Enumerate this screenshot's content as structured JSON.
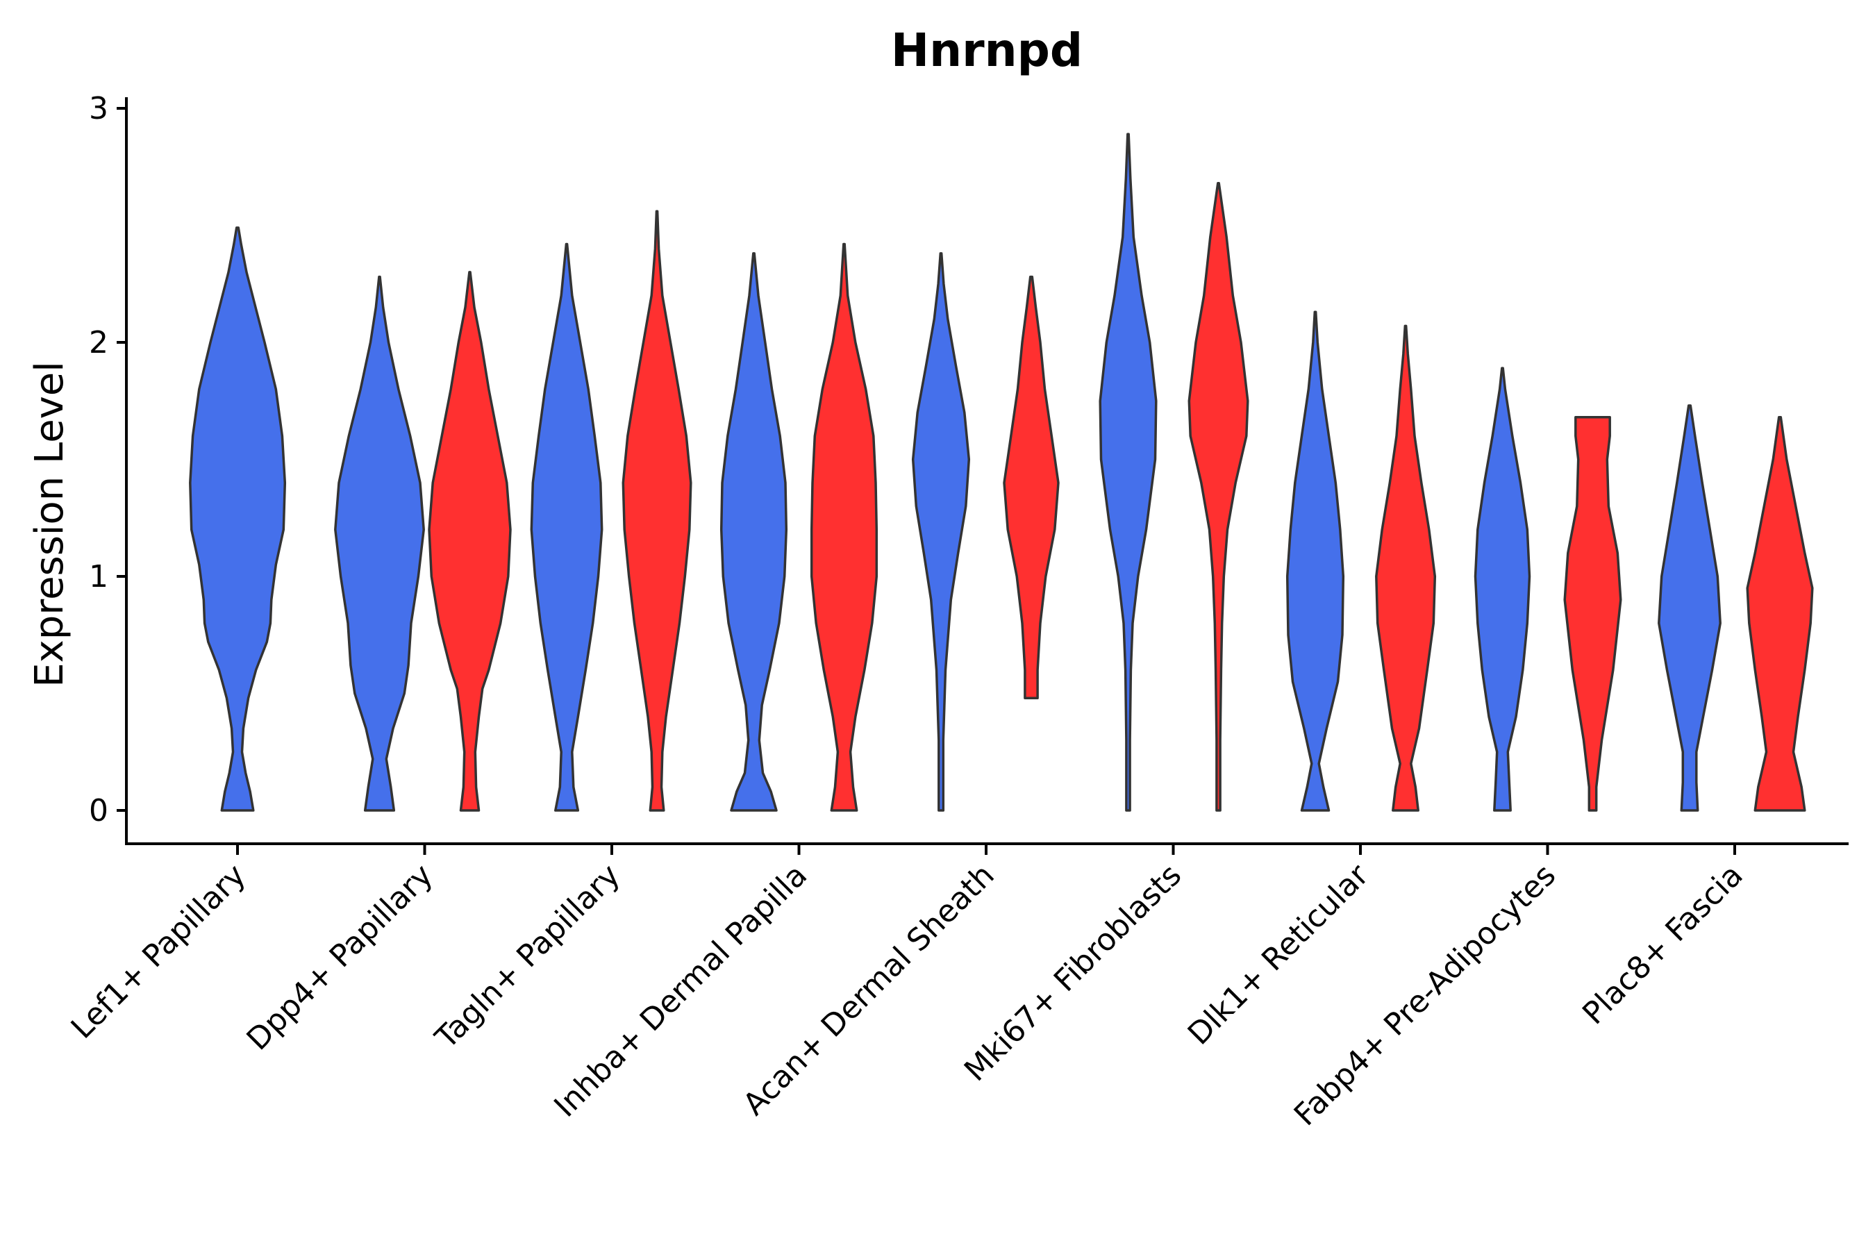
{
  "chart_data": {
    "type": "violin",
    "title": "Hnrnpd",
    "ylabel": "Expression Level",
    "xlabel": "",
    "ylim": [
      -0.15,
      3.05
    ],
    "yticks": [
      0,
      1,
      2,
      3
    ],
    "categories": [
      "Lef1+ Papillary",
      "Dpp4+ Papillary",
      "Tagln+ Papillary",
      "Inhba+ Dermal Papilla",
      "Acan+ Dermal Sheath",
      "Mki67+ Fibroblasts",
      "Dlk1+ Reticular",
      "Fabp4+ Pre-Adipocytes",
      "Plac8+ Fascia"
    ],
    "colors": {
      "group1": "#4570EB",
      "group2": "#FF3030",
      "outline": "#333333"
    },
    "violins": [
      {
        "category": "Lef1+ Papillary",
        "group": 1,
        "min": 0,
        "max": 2.49,
        "profile": [
          [
            0,
            0.35
          ],
          [
            0.08,
            0.28
          ],
          [
            0.16,
            0.18
          ],
          [
            0.25,
            0.1
          ],
          [
            0.35,
            0.13
          ],
          [
            0.48,
            0.24
          ],
          [
            0.6,
            0.41
          ],
          [
            0.72,
            0.65
          ],
          [
            0.8,
            0.73
          ],
          [
            0.9,
            0.75
          ],
          [
            1.05,
            0.85
          ],
          [
            1.2,
            1.02
          ],
          [
            1.4,
            1.05
          ],
          [
            1.6,
            0.99
          ],
          [
            1.8,
            0.85
          ],
          [
            2.0,
            0.6
          ],
          [
            2.15,
            0.4
          ],
          [
            2.3,
            0.2
          ],
          [
            2.42,
            0.08
          ],
          [
            2.49,
            0.02
          ]
        ]
      },
      {
        "category": "Dpp4+ Papillary",
        "group": 1,
        "min": 0,
        "max": 2.28,
        "profile": [
          [
            0,
            0.32
          ],
          [
            0.1,
            0.25
          ],
          [
            0.22,
            0.15
          ],
          [
            0.35,
            0.3
          ],
          [
            0.5,
            0.55
          ],
          [
            0.62,
            0.64
          ],
          [
            0.8,
            0.7
          ],
          [
            1.0,
            0.86
          ],
          [
            1.2,
            0.98
          ],
          [
            1.4,
            0.9
          ],
          [
            1.6,
            0.68
          ],
          [
            1.8,
            0.42
          ],
          [
            2.0,
            0.2
          ],
          [
            2.15,
            0.08
          ],
          [
            2.28,
            0.01
          ]
        ]
      },
      {
        "category": "Dpp4+ Papillary",
        "group": 2,
        "min": 0,
        "max": 2.3,
        "profile": [
          [
            0,
            0.2
          ],
          [
            0.1,
            0.14
          ],
          [
            0.25,
            0.12
          ],
          [
            0.4,
            0.2
          ],
          [
            0.52,
            0.28
          ],
          [
            0.6,
            0.42
          ],
          [
            0.8,
            0.68
          ],
          [
            1.0,
            0.85
          ],
          [
            1.2,
            0.9
          ],
          [
            1.4,
            0.82
          ],
          [
            1.6,
            0.62
          ],
          [
            1.8,
            0.42
          ],
          [
            2.0,
            0.25
          ],
          [
            2.15,
            0.1
          ],
          [
            2.3,
            0.01
          ]
        ]
      },
      {
        "category": "Tagln+ Papillary",
        "group": 1,
        "min": 0,
        "max": 2.42,
        "profile": [
          [
            0,
            0.25
          ],
          [
            0.1,
            0.15
          ],
          [
            0.25,
            0.12
          ],
          [
            0.4,
            0.25
          ],
          [
            0.6,
            0.42
          ],
          [
            0.8,
            0.58
          ],
          [
            1.0,
            0.7
          ],
          [
            1.2,
            0.78
          ],
          [
            1.4,
            0.75
          ],
          [
            1.6,
            0.62
          ],
          [
            1.8,
            0.48
          ],
          [
            2.0,
            0.3
          ],
          [
            2.2,
            0.12
          ],
          [
            2.42,
            0.01
          ]
        ]
      },
      {
        "category": "Tagln+ Papillary",
        "group": 2,
        "min": 0,
        "max": 2.56,
        "profile": [
          [
            0,
            0.15
          ],
          [
            0.1,
            0.1
          ],
          [
            0.25,
            0.12
          ],
          [
            0.4,
            0.2
          ],
          [
            0.6,
            0.35
          ],
          [
            0.8,
            0.5
          ],
          [
            1.0,
            0.62
          ],
          [
            1.2,
            0.72
          ],
          [
            1.4,
            0.75
          ],
          [
            1.6,
            0.65
          ],
          [
            1.8,
            0.48
          ],
          [
            2.0,
            0.3
          ],
          [
            2.2,
            0.12
          ],
          [
            2.4,
            0.04
          ],
          [
            2.56,
            0.01
          ]
        ]
      },
      {
        "category": "Inhba+ Dermal Papilla",
        "group": 1,
        "min": 0,
        "max": 2.38,
        "profile": [
          [
            0,
            0.5
          ],
          [
            0.08,
            0.38
          ],
          [
            0.16,
            0.2
          ],
          [
            0.3,
            0.12
          ],
          [
            0.45,
            0.18
          ],
          [
            0.6,
            0.35
          ],
          [
            0.8,
            0.56
          ],
          [
            1.0,
            0.68
          ],
          [
            1.2,
            0.72
          ],
          [
            1.4,
            0.7
          ],
          [
            1.6,
            0.58
          ],
          [
            1.8,
            0.4
          ],
          [
            2.0,
            0.25
          ],
          [
            2.2,
            0.1
          ],
          [
            2.38,
            0.01
          ]
        ]
      },
      {
        "category": "Inhba+ Dermal Papilla",
        "group": 2,
        "min": 0,
        "max": 2.42,
        "profile": [
          [
            0,
            0.28
          ],
          [
            0.1,
            0.2
          ],
          [
            0.25,
            0.14
          ],
          [
            0.4,
            0.25
          ],
          [
            0.6,
            0.45
          ],
          [
            0.8,
            0.62
          ],
          [
            1.0,
            0.72
          ],
          [
            1.2,
            0.72
          ],
          [
            1.4,
            0.7
          ],
          [
            1.6,
            0.65
          ],
          [
            1.8,
            0.48
          ],
          [
            2.0,
            0.25
          ],
          [
            2.2,
            0.08
          ],
          [
            2.42,
            0.01
          ]
        ]
      },
      {
        "category": "Acan+ Dermal Sheath",
        "group": 1,
        "min": 0,
        "max": 2.38,
        "profile": [
          [
            0,
            0.05
          ],
          [
            0.3,
            0.05
          ],
          [
            0.6,
            0.1
          ],
          [
            0.9,
            0.22
          ],
          [
            1.1,
            0.38
          ],
          [
            1.3,
            0.55
          ],
          [
            1.5,
            0.62
          ],
          [
            1.7,
            0.52
          ],
          [
            1.9,
            0.33
          ],
          [
            2.1,
            0.15
          ],
          [
            2.25,
            0.06
          ],
          [
            2.38,
            0.01
          ]
        ]
      },
      {
        "category": "Acan+ Dermal Sheath",
        "group": 2,
        "min": 0.48,
        "max": 2.28,
        "profile": [
          [
            0.48,
            0.14
          ],
          [
            0.6,
            0.14
          ],
          [
            0.8,
            0.2
          ],
          [
            1.0,
            0.32
          ],
          [
            1.2,
            0.52
          ],
          [
            1.4,
            0.6
          ],
          [
            1.6,
            0.45
          ],
          [
            1.8,
            0.3
          ],
          [
            2.0,
            0.2
          ],
          [
            2.15,
            0.1
          ],
          [
            2.28,
            0.02
          ]
        ]
      },
      {
        "category": "Mki67+ Fibroblasts",
        "group": 1,
        "min": 0,
        "max": 2.89,
        "profile": [
          [
            0,
            0.04
          ],
          [
            0.3,
            0.04
          ],
          [
            0.6,
            0.06
          ],
          [
            0.8,
            0.1
          ],
          [
            1.0,
            0.22
          ],
          [
            1.2,
            0.4
          ],
          [
            1.5,
            0.6
          ],
          [
            1.75,
            0.62
          ],
          [
            2.0,
            0.48
          ],
          [
            2.2,
            0.3
          ],
          [
            2.45,
            0.12
          ],
          [
            2.7,
            0.05
          ],
          [
            2.89,
            0.01
          ]
        ]
      },
      {
        "category": "Mki67+ Fibroblasts",
        "group": 2,
        "min": 0,
        "max": 2.68,
        "profile": [
          [
            0,
            0.04
          ],
          [
            0.3,
            0.04
          ],
          [
            0.6,
            0.06
          ],
          [
            0.8,
            0.08
          ],
          [
            1.0,
            0.12
          ],
          [
            1.2,
            0.2
          ],
          [
            1.4,
            0.38
          ],
          [
            1.6,
            0.62
          ],
          [
            1.75,
            0.65
          ],
          [
            2.0,
            0.5
          ],
          [
            2.2,
            0.32
          ],
          [
            2.45,
            0.18
          ],
          [
            2.68,
            0.01
          ]
        ]
      },
      {
        "category": "Dlk1+ Reticular",
        "group": 1,
        "min": 0,
        "max": 2.13,
        "profile": [
          [
            0,
            0.3
          ],
          [
            0.1,
            0.18
          ],
          [
            0.2,
            0.08
          ],
          [
            0.35,
            0.25
          ],
          [
            0.55,
            0.5
          ],
          [
            0.75,
            0.6
          ],
          [
            1.0,
            0.62
          ],
          [
            1.2,
            0.55
          ],
          [
            1.4,
            0.45
          ],
          [
            1.6,
            0.3
          ],
          [
            1.8,
            0.15
          ],
          [
            2.0,
            0.05
          ],
          [
            2.13,
            0.01
          ]
        ]
      },
      {
        "category": "Dlk1+ Reticular",
        "group": 2,
        "min": 0,
        "max": 2.07,
        "profile": [
          [
            0,
            0.28
          ],
          [
            0.1,
            0.22
          ],
          [
            0.2,
            0.12
          ],
          [
            0.35,
            0.3
          ],
          [
            0.6,
            0.48
          ],
          [
            0.8,
            0.62
          ],
          [
            1.0,
            0.65
          ],
          [
            1.2,
            0.52
          ],
          [
            1.4,
            0.35
          ],
          [
            1.6,
            0.2
          ],
          [
            1.8,
            0.12
          ],
          [
            1.95,
            0.05
          ],
          [
            2.07,
            0.01
          ]
        ]
      },
      {
        "category": "Fabp4+ Pre-Adipocytes",
        "group": 1,
        "min": 0,
        "max": 1.89,
        "profile": [
          [
            0,
            0.18
          ],
          [
            0.12,
            0.15
          ],
          [
            0.25,
            0.12
          ],
          [
            0.4,
            0.3
          ],
          [
            0.6,
            0.45
          ],
          [
            0.8,
            0.55
          ],
          [
            1.0,
            0.6
          ],
          [
            1.2,
            0.55
          ],
          [
            1.4,
            0.4
          ],
          [
            1.6,
            0.22
          ],
          [
            1.8,
            0.06
          ],
          [
            1.89,
            0.01
          ]
        ]
      },
      {
        "category": "Fabp4+ Pre-Adipocytes",
        "group": 2,
        "min": 0,
        "max": 1.68,
        "profile": [
          [
            0,
            0.08
          ],
          [
            0.1,
            0.08
          ],
          [
            0.3,
            0.2
          ],
          [
            0.6,
            0.45
          ],
          [
            0.9,
            0.62
          ],
          [
            1.1,
            0.55
          ],
          [
            1.3,
            0.35
          ],
          [
            1.5,
            0.32
          ],
          [
            1.6,
            0.38
          ],
          [
            1.68,
            0.38
          ]
        ]
      },
      {
        "category": "Plac8+ Fascia",
        "group": 1,
        "min": 0,
        "max": 1.73,
        "profile": [
          [
            0,
            0.18
          ],
          [
            0.12,
            0.15
          ],
          [
            0.25,
            0.15
          ],
          [
            0.4,
            0.3
          ],
          [
            0.6,
            0.5
          ],
          [
            0.8,
            0.68
          ],
          [
            1.0,
            0.62
          ],
          [
            1.2,
            0.45
          ],
          [
            1.4,
            0.28
          ],
          [
            1.6,
            0.12
          ],
          [
            1.73,
            0.02
          ]
        ]
      },
      {
        "category": "Plac8+ Fascia",
        "group": 2,
        "min": 0,
        "max": 1.68,
        "profile": [
          [
            0,
            0.55
          ],
          [
            0.1,
            0.48
          ],
          [
            0.25,
            0.3
          ],
          [
            0.4,
            0.4
          ],
          [
            0.6,
            0.55
          ],
          [
            0.8,
            0.68
          ],
          [
            0.95,
            0.72
          ],
          [
            1.1,
            0.55
          ],
          [
            1.3,
            0.35
          ],
          [
            1.5,
            0.15
          ],
          [
            1.68,
            0.02
          ]
        ]
      }
    ]
  }
}
